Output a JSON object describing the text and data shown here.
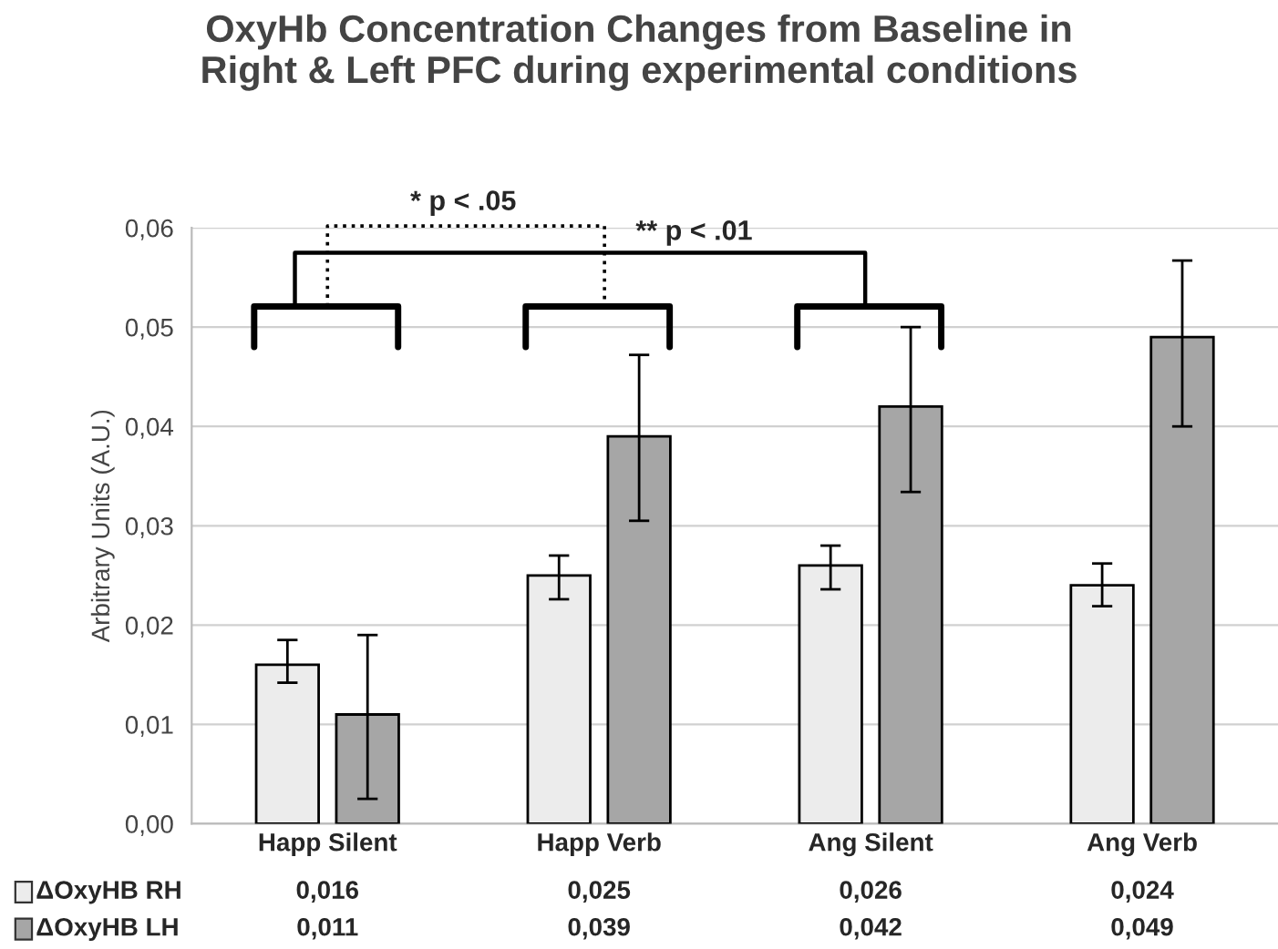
{
  "chart_data": {
    "type": "bar",
    "title": "OxyHb Concentration Changes from Baseline in\nRight & Left PFC during experimental conditions",
    "ylabel": "Arbitrary Units (A.U.)",
    "categories": [
      "Happ Silent",
      "Happ Verb",
      "Ang Silent",
      "Ang Verb"
    ],
    "series": [
      {
        "name": "ΔOxyHB RH",
        "color": "#ececec",
        "values": [
          0.016,
          0.025,
          0.026,
          0.024
        ],
        "value_labels": [
          "0,016",
          "0,025",
          "0,026",
          "0,024"
        ],
        "errors": [
          [
            0.0142,
            0.0185
          ],
          [
            0.0226,
            0.027
          ],
          [
            0.0236,
            0.028
          ],
          [
            0.0219,
            0.0262
          ]
        ]
      },
      {
        "name": "ΔOxyHB LH",
        "color": "#a6a6a6",
        "values": [
          0.011,
          0.039,
          0.042,
          0.049
        ],
        "value_labels": [
          "0,011",
          "0,039",
          "0,042",
          "0,049"
        ],
        "errors": [
          [
            0.0025,
            0.019
          ],
          [
            0.0305,
            0.0472
          ],
          [
            0.0334,
            0.05
          ],
          [
            0.04,
            0.0567
          ]
        ]
      }
    ],
    "ylim": [
      0,
      0.06
    ],
    "yticks": [
      {
        "value": 0,
        "label": "0,00"
      },
      {
        "value": 0.01,
        "label": "0,01"
      },
      {
        "value": 0.02,
        "label": "0,02"
      },
      {
        "value": 0.03,
        "label": "0,03"
      },
      {
        "value": 0.04,
        "label": "0,04"
      },
      {
        "value": 0.05,
        "label": "0,05"
      },
      {
        "value": 0.06,
        "label": "0,06"
      }
    ],
    "grid": "y",
    "legend": "bottom",
    "annotations": [
      "* p < .05",
      "** p < .01"
    ]
  }
}
